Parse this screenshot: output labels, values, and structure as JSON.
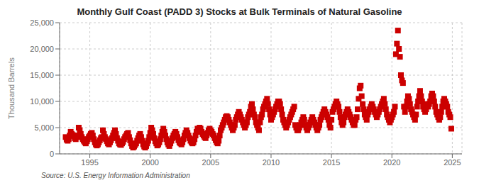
{
  "chart_data": {
    "type": "scatter",
    "title": "Monthly Gulf Coast (PADD 3) Stocks at Bulk Terminals of Natural Gasoline",
    "ylabel": "Thousand Barrels",
    "annotations": [
      "Source: U.S. Energy Information Administration"
    ],
    "color": "#cc0000",
    "marker": "square",
    "grid": true,
    "xlim": [
      1992.5,
      2025.8
    ],
    "xticks": [
      1995,
      2000,
      2005,
      2010,
      2015,
      2020,
      2025
    ],
    "ylim": [
      0,
      25000
    ],
    "yticks": [
      0,
      {
        "value": 5000,
        "label": "5,000"
      },
      {
        "value": 10000,
        "label": "10,000"
      },
      {
        "value": 15000,
        "label": "15,000"
      },
      {
        "value": 20000,
        "label": "20,000"
      },
      {
        "value": 25000,
        "label": "25,000"
      }
    ],
    "x": [
      1993.0,
      1993.083,
      1993.167,
      1993.25,
      1993.333,
      1993.417,
      1993.5,
      1993.583,
      1993.667,
      1993.75,
      1993.833,
      1993.917,
      1994.0,
      1994.083,
      1994.167,
      1994.25,
      1994.333,
      1994.417,
      1994.5,
      1994.583,
      1994.667,
      1994.75,
      1994.833,
      1994.917,
      1995.0,
      1995.083,
      1995.167,
      1995.25,
      1995.333,
      1995.417,
      1995.5,
      1995.583,
      1995.667,
      1995.75,
      1995.833,
      1995.917,
      1996.0,
      1996.083,
      1996.167,
      1996.25,
      1996.333,
      1996.417,
      1996.5,
      1996.583,
      1996.667,
      1996.75,
      1996.833,
      1996.917,
      1997.0,
      1997.083,
      1997.167,
      1997.25,
      1997.333,
      1997.417,
      1997.5,
      1997.583,
      1997.667,
      1997.75,
      1997.833,
      1997.917,
      1998.0,
      1998.083,
      1998.167,
      1998.25,
      1998.333,
      1998.417,
      1998.5,
      1998.583,
      1998.667,
      1998.75,
      1998.833,
      1998.917,
      1999.0,
      1999.083,
      1999.167,
      1999.25,
      1999.333,
      1999.417,
      1999.5,
      1999.583,
      1999.667,
      1999.75,
      1999.833,
      1999.917,
      2000.0,
      2000.083,
      2000.167,
      2000.25,
      2000.333,
      2000.417,
      2000.5,
      2000.583,
      2000.667,
      2000.75,
      2000.833,
      2000.917,
      2001.0,
      2001.083,
      2001.167,
      2001.25,
      2001.333,
      2001.417,
      2001.5,
      2001.583,
      2001.667,
      2001.75,
      2001.833,
      2001.917,
      2002.0,
      2002.083,
      2002.167,
      2002.25,
      2002.333,
      2002.417,
      2002.5,
      2002.583,
      2002.667,
      2002.75,
      2002.833,
      2002.917,
      2003.0,
      2003.083,
      2003.167,
      2003.25,
      2003.333,
      2003.417,
      2003.5,
      2003.583,
      2003.667,
      2003.75,
      2003.833,
      2003.917,
      2004.0,
      2004.083,
      2004.167,
      2004.25,
      2004.333,
      2004.417,
      2004.5,
      2004.583,
      2004.667,
      2004.75,
      2004.833,
      2004.917,
      2005.0,
      2005.083,
      2005.167,
      2005.25,
      2005.333,
      2005.417,
      2005.5,
      2005.583,
      2005.667,
      2005.75,
      2005.833,
      2005.917,
      2006.0,
      2006.083,
      2006.167,
      2006.25,
      2006.333,
      2006.417,
      2006.5,
      2006.583,
      2006.667,
      2006.75,
      2006.833,
      2006.917,
      2007.0,
      2007.083,
      2007.167,
      2007.25,
      2007.333,
      2007.417,
      2007.5,
      2007.583,
      2007.667,
      2007.75,
      2007.833,
      2007.917,
      2008.0,
      2008.083,
      2008.167,
      2008.25,
      2008.333,
      2008.417,
      2008.5,
      2008.583,
      2008.667,
      2008.75,
      2008.833,
      2008.917,
      2009.0,
      2009.083,
      2009.167,
      2009.25,
      2009.333,
      2009.417,
      2009.5,
      2009.583,
      2009.667,
      2009.75,
      2009.833,
      2009.917,
      2010.0,
      2010.083,
      2010.167,
      2010.25,
      2010.333,
      2010.417,
      2010.5,
      2010.583,
      2010.667,
      2010.75,
      2010.833,
      2010.917,
      2011.0,
      2011.083,
      2011.167,
      2011.25,
      2011.333,
      2011.417,
      2011.5,
      2011.583,
      2011.667,
      2011.75,
      2011.833,
      2011.917,
      2012.0,
      2012.083,
      2012.167,
      2012.25,
      2012.333,
      2012.417,
      2012.5,
      2012.583,
      2012.667,
      2012.75,
      2012.833,
      2012.917,
      2013.0,
      2013.083,
      2013.167,
      2013.25,
      2013.333,
      2013.417,
      2013.5,
      2013.583,
      2013.667,
      2013.75,
      2013.833,
      2013.917,
      2014.0,
      2014.083,
      2014.167,
      2014.25,
      2014.333,
      2014.417,
      2014.5,
      2014.583,
      2014.667,
      2014.75,
      2014.833,
      2014.917,
      2015.0,
      2015.083,
      2015.167,
      2015.25,
      2015.333,
      2015.417,
      2015.5,
      2015.583,
      2015.667,
      2015.75,
      2015.833,
      2015.917,
      2016.0,
      2016.083,
      2016.167,
      2016.25,
      2016.333,
      2016.417,
      2016.5,
      2016.583,
      2016.667,
      2016.75,
      2016.833,
      2016.917,
      2017.0,
      2017.083,
      2017.167,
      2017.25,
      2017.333,
      2017.417,
      2017.5,
      2017.583,
      2017.667,
      2017.75,
      2017.833,
      2017.917,
      2018.0,
      2018.083,
      2018.167,
      2018.25,
      2018.333,
      2018.417,
      2018.5,
      2018.583,
      2018.667,
      2018.75,
      2018.833,
      2018.917,
      2019.0,
      2019.083,
      2019.167,
      2019.25,
      2019.333,
      2019.417,
      2019.5,
      2019.583,
      2019.667,
      2019.75,
      2019.833,
      2019.917,
      2020.0,
      2020.083,
      2020.167,
      2020.25,
      2020.333,
      2020.417,
      2020.5,
      2020.583,
      2020.667,
      2020.75,
      2020.833,
      2020.917,
      2021.0,
      2021.083,
      2021.167,
      2021.25,
      2021.333,
      2021.417,
      2021.5,
      2021.583,
      2021.667,
      2021.75,
      2021.833,
      2021.917,
      2022.0,
      2022.083,
      2022.167,
      2022.25,
      2022.333,
      2022.417,
      2022.5,
      2022.583,
      2022.667,
      2022.75,
      2022.833,
      2022.917,
      2023.0,
      2023.083,
      2023.167,
      2023.25,
      2023.333,
      2023.417,
      2023.5,
      2023.583,
      2023.667,
      2023.75,
      2023.833,
      2023.917,
      2024.0,
      2024.083,
      2024.167,
      2024.25,
      2024.333,
      2024.417,
      2024.5,
      2024.583,
      2024.667,
      2024.75,
      2024.833,
      2024.917
    ],
    "values": [
      3200,
      2700,
      2500,
      2800,
      3500,
      4200,
      3800,
      3600,
      3400,
      3000,
      2800,
      3200,
      3500,
      5000,
      4500,
      3800,
      3200,
      2800,
      2500,
      2200,
      2000,
      2400,
      2800,
      3200,
      3500,
      3800,
      4000,
      3500,
      2800,
      2200,
      1800,
      1600,
      1800,
      2200,
      2600,
      3000,
      3200,
      4500,
      3800,
      3200,
      2800,
      2400,
      2000,
      1800,
      2200,
      2600,
      3000,
      3500,
      4000,
      4500,
      3800,
      3000,
      2500,
      2000,
      1800,
      1700,
      2000,
      2300,
      2800,
      3200,
      3500,
      3800,
      4000,
      3200,
      2600,
      2000,
      1500,
      1200,
      1400,
      1700,
      2000,
      2500,
      3000,
      3500,
      3800,
      3200,
      2500,
      1800,
      1400,
      1200,
      1500,
      2000,
      2500,
      3200,
      4000,
      5000,
      4500,
      3800,
      3000,
      2400,
      2000,
      1600,
      1800,
      2200,
      2800,
      3500,
      4200,
      4800,
      4200,
      3500,
      2800,
      2200,
      1800,
      1500,
      2000,
      2500,
      3000,
      3500,
      3800,
      4200,
      3800,
      3200,
      2600,
      2200,
      2000,
      1800,
      2200,
      2800,
      3500,
      4000,
      4500,
      4000,
      3500,
      3000,
      2500,
      2200,
      2000,
      2200,
      2800,
      3500,
      4200,
      4800,
      4200,
      5000,
      4800,
      4200,
      3800,
      3500,
      3200,
      3000,
      3500,
      4000,
      4500,
      4800,
      4500,
      4200,
      3800,
      3500,
      3000,
      2600,
      2200,
      2000,
      2500,
      3500,
      4500,
      5000,
      5500,
      6000,
      6500,
      7000,
      7200,
      7000,
      6500,
      6000,
      5500,
      5000,
      4500,
      5000,
      5500,
      6500,
      7000,
      7500,
      8000,
      7500,
      7000,
      6500,
      6000,
      5500,
      5000,
      5500,
      6000,
      7000,
      7500,
      8000,
      9000,
      9500,
      8500,
      7500,
      7000,
      6000,
      5500,
      5000,
      4500,
      6000,
      7000,
      7500,
      8500,
      9000,
      9500,
      10000,
      10500,
      9500,
      8500,
      7500,
      6500,
      7000,
      7500,
      8000,
      8500,
      9000,
      9500,
      10000,
      10000,
      9500,
      8500,
      7500,
      6500,
      6000,
      5500,
      5000,
      5500,
      6000,
      6500,
      7000,
      7500,
      8000,
      8500,
      9000,
      5500,
      5000,
      4500,
      4500,
      5000,
      5500,
      6000,
      6500,
      7000,
      6500,
      5500,
      5000,
      4500,
      5000,
      5500,
      6000,
      6500,
      7000,
      6500,
      6000,
      5500,
      5000,
      4500,
      5000,
      5500,
      6500,
      7000,
      7500,
      8000,
      8500,
      8000,
      7500,
      7000,
      6500,
      5500,
      5000,
      6500,
      8000,
      8500,
      9000,
      9500,
      10000,
      9500,
      9000,
      8000,
      7000,
      6000,
      5500,
      6000,
      7000,
      7500,
      8000,
      8500,
      8000,
      7500,
      7000,
      6500,
      6000,
      5500,
      5500,
      6500,
      7000,
      8500,
      10500,
      12500,
      13000,
      11000,
      9500,
      8500,
      7500,
      7000,
      6500,
      7500,
      8000,
      8500,
      9000,
      9500,
      9000,
      8500,
      8000,
      7500,
      7000,
      7500,
      8000,
      8500,
      9000,
      9500,
      10000,
      10500,
      9500,
      8500,
      7500,
      7000,
      6500,
      6000,
      6500,
      7000,
      7500,
      8000,
      9000,
      19000,
      21000,
      23500,
      20000,
      18500,
      15000,
      14000,
      13500,
      9000,
      8000,
      9000,
      10000,
      11000,
      10500,
      9500,
      8500,
      8000,
      7500,
      7000,
      6500,
      7500,
      9000,
      10000,
      11000,
      12000,
      11000,
      10000,
      9000,
      8500,
      8000,
      8500,
      9500,
      9000,
      9500,
      10000,
      11000,
      11500,
      11000,
      10000,
      9000,
      8000,
      7500,
      7000,
      6500,
      7000,
      8000,
      9000,
      10000,
      10500,
      10000,
      9500,
      9000,
      8000,
      7500,
      7000,
      4800
    ]
  }
}
